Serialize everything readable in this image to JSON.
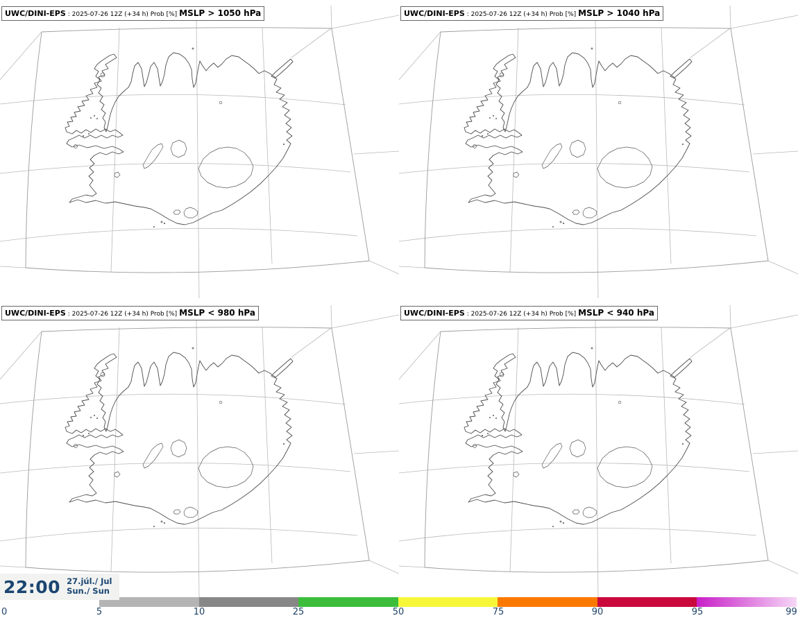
{
  "panels": [
    {
      "model": "UWC/DINI-EPS",
      "details": ": 2025-07-26 12Z (+34 h) Prob [%]",
      "threshold": "MSLP > 1050 hPa"
    },
    {
      "model": "UWC/DINI-EPS",
      "details": ": 2025-07-26 12Z (+34 h) Prob [%]",
      "threshold": "MSLP > 1040 hPa"
    },
    {
      "model": "UWC/DINI-EPS",
      "details": ": 2025-07-26 12Z (+34 h) Prob [%]",
      "threshold": "MSLP < 980 hPa"
    },
    {
      "model": "UWC/DINI-EPS",
      "details": ": 2025-07-26 12Z (+34 h) Prob [%]",
      "threshold": "MSLP < 940 hPa"
    }
  ],
  "time": {
    "clock": "22:00",
    "date": "27.júl./ Jul",
    "day": "Sun./ Sun",
    "text_color": "#1b4571",
    "bg_color": "#f2f3f1"
  },
  "colorbar": {
    "labels": [
      "0",
      "5",
      "10",
      "25",
      "50",
      "75",
      "90",
      "95",
      "99"
    ],
    "segments": [
      {
        "from": "5",
        "to": "10",
        "color": "#b4b4b4"
      },
      {
        "from": "10",
        "to": "25",
        "color": "#878787"
      },
      {
        "from": "25",
        "to": "50",
        "color": "#3cbe3c"
      },
      {
        "from": "50",
        "to": "75",
        "color": "#f7f73a"
      },
      {
        "from": "75",
        "to": "90",
        "color": "#fb7900"
      },
      {
        "from": "90",
        "to": "95",
        "color": "#c9083c"
      },
      {
        "from": "95",
        "to": "99",
        "color": "#c81fc8",
        "color_end": "#f6d7f6"
      }
    ],
    "text_color": "#1d4166"
  },
  "map_colors": {
    "coastline": "#4d4d4d",
    "graticule": "#b9b9b9",
    "frame": "#9a9a9a"
  }
}
